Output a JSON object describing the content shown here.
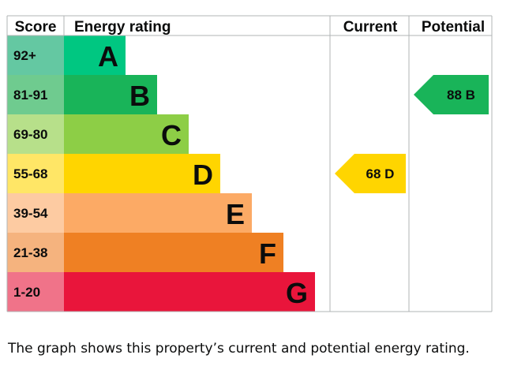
{
  "chart_data": {
    "type": "bar",
    "title": "",
    "headers": {
      "score": "Score",
      "rating": "Energy rating",
      "current": "Current",
      "potential": "Potential"
    },
    "bands": [
      {
        "letter": "A",
        "range": "92+",
        "color": "#00c781",
        "score_color": "#64c8a2"
      },
      {
        "letter": "B",
        "range": "81-91",
        "color": "#19b459",
        "score_color": "#6fcb8f"
      },
      {
        "letter": "C",
        "range": "69-80",
        "color": "#8dce46",
        "score_color": "#b7e08a"
      },
      {
        "letter": "D",
        "range": "55-68",
        "color": "#ffd500",
        "score_color": "#ffe666"
      },
      {
        "letter": "E",
        "range": "39-54",
        "color": "#fcaa65",
        "score_color": "#fdcba2"
      },
      {
        "letter": "F",
        "range": "21-38",
        "color": "#ef8023",
        "score_color": "#f5b37e"
      },
      {
        "letter": "G",
        "range": "1-20",
        "color": "#e9153b",
        "score_color": "#f07389"
      }
    ],
    "current": {
      "value": 68,
      "band": "D",
      "label": "68  D",
      "color": "#ffd500"
    },
    "potential": {
      "value": 88,
      "band": "B",
      "label": "88  B",
      "color": "#19b459"
    }
  },
  "caption": "The graph shows this property’s current and potential energy rating."
}
